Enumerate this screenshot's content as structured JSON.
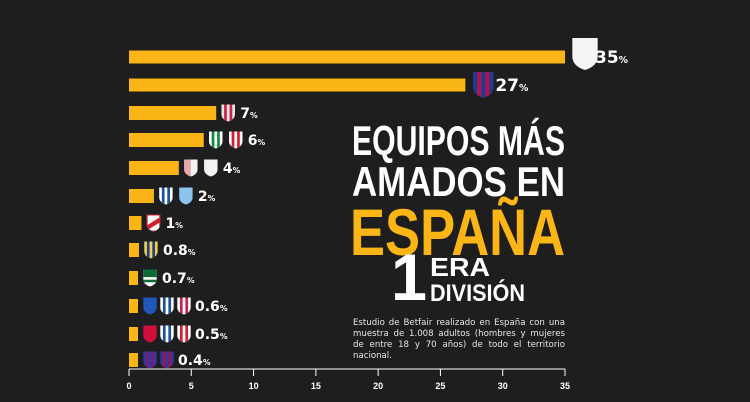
{
  "chart_data": {
    "type": "bar",
    "orientation": "horizontal",
    "title": [
      "EQUIPOS MÁS",
      "AMADOS EN",
      "ESPAÑA"
    ],
    "subtitle": {
      "number": "1",
      "line1": "ERA",
      "line2": "DIVISIÓN"
    },
    "note": "Estudio de Betfair realizado en España con una muestra de 1.008 adultos (hombres y mujeres de entre 18 y 70 años) de todo el territorio nacional.",
    "unit": "%",
    "xlim": [
      0,
      35
    ],
    "xticks": [
      0,
      5,
      10,
      15,
      20,
      25,
      30,
      35
    ],
    "grid": false,
    "bar_color": "#fbb616",
    "title_color": "#ffffff",
    "accent_color": "#fbb616",
    "values": [
      35,
      27,
      7,
      6,
      4,
      2,
      1,
      0.8,
      0.7,
      0.6,
      0.5,
      0.4
    ],
    "labels": [
      "35",
      "27",
      "7",
      "6",
      "4",
      "2",
      "1",
      "0.8",
      "0.7",
      "0.6",
      "0.5",
      "0.4"
    ],
    "crests": [
      [
        {
          "icon": "white-crest-icon",
          "a": "#f4f4f6",
          "b": "#f4f4f6",
          "p": "solid"
        }
      ],
      [
        {
          "icon": "blue-red-crest-icon",
          "a": "#1f3a93",
          "b": "#b0124a",
          "p": "vstripes"
        }
      ],
      [
        {
          "icon": "red-white-striped-crest-icon",
          "a": "#e6e6e6",
          "b": "#c8234e",
          "p": "vstripes"
        }
      ],
      [
        {
          "icon": "green-white-striped-crest-icon",
          "a": "#ffffff",
          "b": "#0f8a3c",
          "p": "vstripes"
        },
        {
          "icon": "red-white-striped-crest-icon",
          "a": "#ffffff",
          "b": "#d3202f",
          "p": "vstripes"
        }
      ],
      [
        {
          "icon": "white-red-crest-icon",
          "a": "#f2f2f2",
          "b": "#d3202f",
          "p": "solid"
        },
        {
          "icon": "white-crest-icon",
          "a": "#f2f2f2",
          "b": "#f2f2f2",
          "p": "solid"
        }
      ],
      [
        {
          "icon": "blue-white-striped-crest-icon",
          "a": "#ffffff",
          "b": "#1e4fa0",
          "p": "vstripes"
        },
        {
          "icon": "light-blue-crest-icon",
          "a": "#8cc4ee",
          "b": "#8cc4ee",
          "p": "solid"
        }
      ],
      [
        {
          "icon": "red-sash-crest-icon",
          "a": "#ffffff",
          "b": "#d3202f",
          "p": "diag"
        }
      ],
      [
        {
          "icon": "yellow-blue-crest-icon",
          "a": "#f3d24a",
          "b": "#1e3d8f",
          "p": "vstripes"
        }
      ],
      [
        {
          "icon": "green-white-crest-icon",
          "a": "#ffffff",
          "b": "#0f6b34",
          "p": "hband"
        }
      ],
      [
        {
          "icon": "blue-crest-icon",
          "a": "#1f58b8",
          "b": "#1f58b8",
          "p": "solid"
        },
        {
          "icon": "blue-white-striped-crest-icon",
          "a": "#ffffff",
          "b": "#1e4fa0",
          "p": "vstripes"
        },
        {
          "icon": "red-white-striped-crest-icon",
          "a": "#ffffff",
          "b": "#c8234e",
          "p": "vstripes"
        }
      ],
      [
        {
          "icon": "red-crest-icon",
          "a": "#d0103a",
          "b": "#d0103a",
          "p": "solid"
        },
        {
          "icon": "blue-white-striped-crest-icon",
          "a": "#ffffff",
          "b": "#1e4fa0",
          "p": "vstripes"
        },
        {
          "icon": "red-white-striped-crest-icon",
          "a": "#ffffff",
          "b": "#d3202f",
          "p": "vstripes"
        }
      ],
      [
        {
          "icon": "blue-purple-crest-icon",
          "a": "#2b3aa8",
          "b": "#7a1b6e",
          "p": "vstripes"
        },
        {
          "icon": "blue-red-crest-icon",
          "a": "#2b3aa8",
          "b": "#a0124a",
          "p": "vstripes"
        }
      ]
    ]
  }
}
